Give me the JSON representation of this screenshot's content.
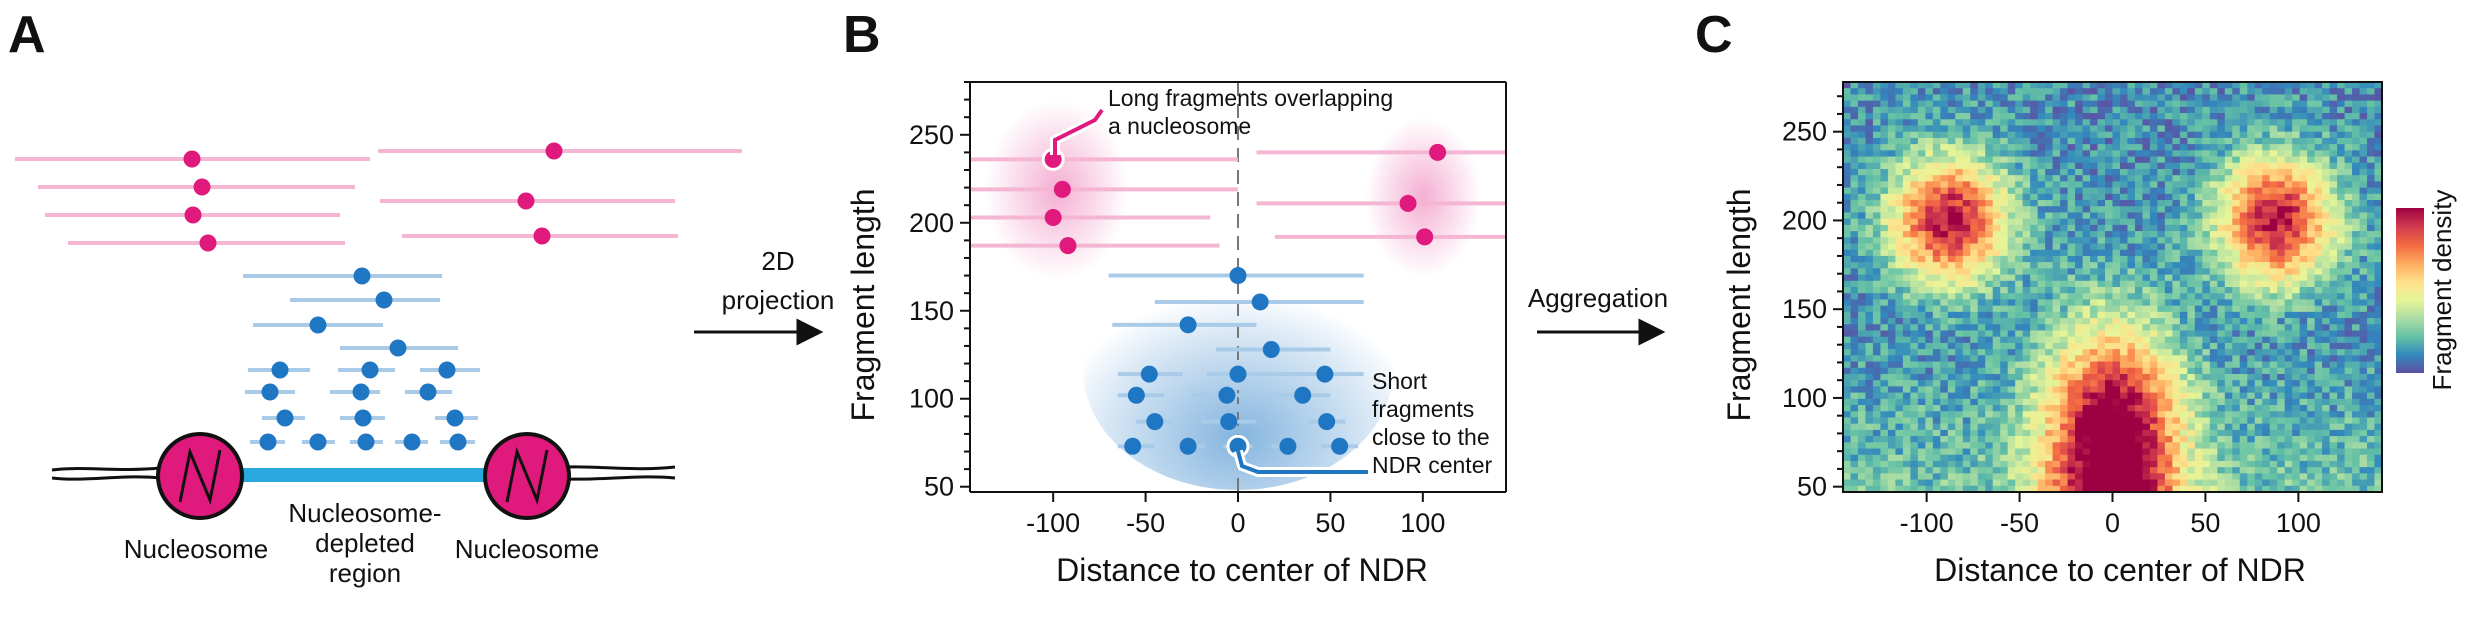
{
  "panels": {
    "a": {
      "letter": "A",
      "labels": {
        "nucleosome_left": "Nucleosome",
        "ndr_line1": "Nucleosome-",
        "ndr_line2": "depleted",
        "ndr_line3": "region",
        "nucleosome_right": "Nucleosome"
      }
    },
    "arrow1": {
      "line1": "2D",
      "line2": "projection"
    },
    "b": {
      "letter": "B",
      "xlabel": "Distance to center of NDR",
      "ylabel": "Fragment length",
      "annotation_long_line1": "Long fragments overlapping",
      "annotation_long_line2": "a nucleosome",
      "annotation_short_line1": "Short",
      "annotation_short_line2": "fragments",
      "annotation_short_line3": "close to the",
      "annotation_short_line4": "NDR center"
    },
    "arrow2": {
      "label": "Aggregation"
    },
    "c": {
      "letter": "C",
      "xlabel": "Distance to center of NDR",
      "ylabel": "Fragment length",
      "colorbar_label": "Fragment density"
    }
  },
  "colors": {
    "long_fragment": "#e0197d",
    "long_fragment_line": "#f4b6d3",
    "short_fragment": "#1f77c4",
    "short_fragment_line": "#a9cbe8",
    "nucleosome": "#e0197d",
    "ndr_dna": "#29a8dd"
  },
  "chart_data": [
    {
      "panel": "B",
      "type": "scatter",
      "xlabel": "Distance to center of NDR",
      "ylabel": "Fragment length",
      "xlim": [
        -145,
        145
      ],
      "ylim": [
        47,
        280
      ],
      "xticks": [
        -100,
        -50,
        0,
        50,
        100
      ],
      "yticks": [
        50,
        100,
        150,
        200,
        250
      ],
      "series": [
        {
          "color": "#e0197d",
          "points": [
            {
              "x": -100,
              "y": 236,
              "x0": -145,
              "x1": 0
            },
            {
              "x": -95,
              "y": 219,
              "x0": -145,
              "x1": 0
            },
            {
              "x": -100,
              "y": 203,
              "x0": -145,
              "x1": -15
            },
            {
              "x": -92,
              "y": 187,
              "x0": -145,
              "x1": -10
            },
            {
              "x": 108,
              "y": 240,
              "x0": 10,
              "x1": 145
            },
            {
              "x": 92,
              "y": 211,
              "x0": 10,
              "x1": 145
            },
            {
              "x": 101,
              "y": 192,
              "x0": 20,
              "x1": 145
            }
          ]
        },
        {
          "color": "#1f77c4",
          "points": [
            {
              "x": 0,
              "y": 170,
              "x0": -70,
              "x1": 68
            },
            {
              "x": 12,
              "y": 155,
              "x0": -45,
              "x1": 68
            },
            {
              "x": -27,
              "y": 142,
              "x0": -68,
              "x1": 10
            },
            {
              "x": 18,
              "y": 128,
              "x0": -12,
              "x1": 50
            },
            {
              "x": -48,
              "y": 114,
              "x0": -65,
              "x1": -30
            },
            {
              "x": 0,
              "y": 114,
              "x0": -17,
              "x1": 25
            },
            {
              "x": 47,
              "y": 114,
              "x0": 25,
              "x1": 68
            },
            {
              "x": -55,
              "y": 102,
              "x0": -65,
              "x1": -40
            },
            {
              "x": -6,
              "y": 102,
              "x0": -25,
              "x1": 15
            },
            {
              "x": 35,
              "y": 102,
              "x0": 20,
              "x1": 50
            },
            {
              "x": -45,
              "y": 87,
              "x0": -55,
              "x1": -35
            },
            {
              "x": -5,
              "y": 87,
              "x0": -20,
              "x1": 10
            },
            {
              "x": 48,
              "y": 87,
              "x0": 38,
              "x1": 58
            },
            {
              "x": -57,
              "y": 73,
              "x0": -65,
              "x1": -45
            },
            {
              "x": -27,
              "y": 73,
              "x0": -35,
              "x1": -18
            },
            {
              "x": 0,
              "y": 73,
              "x0": -8,
              "x1": 8
            },
            {
              "x": 27,
              "y": 73,
              "x0": 18,
              "x1": 35
            },
            {
              "x": 55,
              "y": 73,
              "x0": 45,
              "x1": 65
            }
          ]
        }
      ]
    },
    {
      "panel": "C",
      "type": "heatmap",
      "xlabel": "Distance to center of NDR",
      "ylabel": "Fragment length",
      "xlim": [
        -145,
        145
      ],
      "ylim": [
        47,
        278
      ],
      "xticks": [
        -100,
        -50,
        0,
        50,
        100
      ],
      "yticks": [
        50,
        100,
        150,
        200,
        250
      ],
      "colorbar_label": "Fragment density",
      "colormap": [
        "#5e4fa2",
        "#3288bd",
        "#66c2a5",
        "#abdda4",
        "#e6f598",
        "#fee08b",
        "#fdae61",
        "#f46d43",
        "#d53e4f",
        "#9e0142"
      ],
      "hotspots": [
        {
          "x": -88,
          "y": 200,
          "sx": 22,
          "sy": 25,
          "density": 0.85
        },
        {
          "x": 88,
          "y": 200,
          "sx": 22,
          "sy": 25,
          "density": 0.85
        },
        {
          "x": 0,
          "y": 75,
          "sx": 25,
          "sy": 45,
          "density": 1.0
        }
      ]
    }
  ]
}
